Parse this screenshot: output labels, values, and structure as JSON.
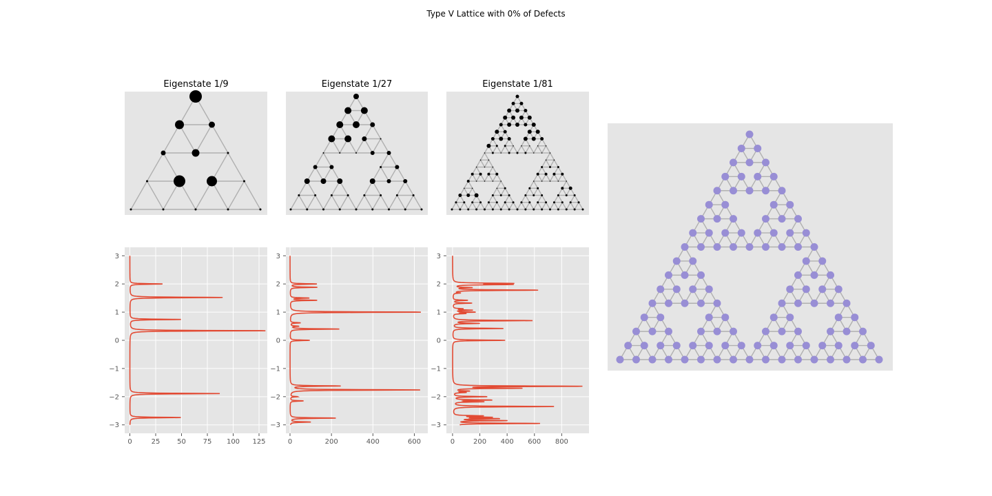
{
  "figure": {
    "title": "Type V Lattice with 0% of Defects"
  },
  "colors": {
    "panel_bg": "#e5e5e5",
    "grid": "#ffffff",
    "edge": "#b0b0b0",
    "eigen_node": "#000000",
    "dos_line": "#e24a33",
    "lattice_node": "#988ed5"
  },
  "chart_data": [
    {
      "type": "network",
      "title": "Eigenstate 1/9",
      "lattice_level": 2,
      "node_sizes": [
        18,
        13,
        9,
        7,
        11,
        3,
        3,
        17,
        15
      ]
    },
    {
      "type": "network",
      "title": "Eigenstate 1/27",
      "lattice_level": 3,
      "node_sizes": [
        8,
        10,
        10,
        10,
        10,
        7,
        10,
        10,
        7,
        2,
        2,
        2,
        2,
        6,
        6,
        6,
        6,
        3,
        6,
        8,
        8,
        8,
        8,
        6,
        6,
        3,
        3
      ]
    },
    {
      "type": "network",
      "title": "Eigenstate 1/81",
      "lattice_level": 4,
      "node_sizes": [
        5,
        5,
        5,
        6,
        6,
        5,
        6,
        6,
        6,
        6,
        5,
        6,
        6,
        5,
        6,
        6,
        5,
        6,
        6,
        5,
        6,
        5,
        6,
        6,
        5,
        6,
        3,
        3,
        1,
        1,
        1,
        1,
        1,
        1,
        3,
        1,
        3,
        3,
        3,
        1,
        1,
        1,
        1,
        1,
        1,
        1,
        1,
        1,
        1,
        3,
        3,
        3,
        4,
        4,
        4,
        4,
        4,
        4,
        4,
        4,
        4,
        1,
        1,
        1,
        1,
        1,
        1,
        1,
        1,
        1,
        1,
        1,
        1,
        3,
        3,
        3,
        4,
        5,
        5,
        5,
        6
      ]
    },
    {
      "type": "line",
      "x_ticks": [
        0,
        25,
        50,
        75,
        100,
        125
      ],
      "xlim": [
        -5,
        133
      ],
      "y_ticks": [
        3,
        2,
        1,
        0,
        -1,
        -2,
        -3
      ],
      "y_tick_labels": [
        "3",
        "2",
        "1",
        "0",
        "−1",
        "−2",
        "−3"
      ],
      "ylim": [
        -3.3,
        3.3
      ],
      "peaks": [
        [
          2.0,
          32
        ],
        [
          1.52,
          91
        ],
        [
          0.74,
          50
        ],
        [
          0.34,
          133
        ],
        [
          -1.89,
          87
        ],
        [
          -2.74,
          50
        ]
      ]
    },
    {
      "type": "line",
      "x_ticks": [
        0,
        200,
        400,
        600
      ],
      "xlim": [
        -20,
        665
      ],
      "y_ticks": [
        3,
        2,
        1,
        0,
        -1,
        -2,
        -3
      ],
      "y_tick_labels": [
        "3",
        "2",
        "1",
        "0",
        "−1",
        "−2",
        "−3"
      ],
      "ylim": [
        -3.3,
        3.3
      ],
      "peaks": [
        [
          2.0,
          130
        ],
        [
          1.88,
          132
        ],
        [
          1.5,
          90
        ],
        [
          1.42,
          130
        ],
        [
          1.0,
          640
        ],
        [
          0.62,
          50
        ],
        [
          0.5,
          40
        ],
        [
          0.4,
          240
        ],
        [
          0.0,
          95
        ],
        [
          -1.62,
          240
        ],
        [
          -1.76,
          635
        ],
        [
          -2.0,
          35
        ],
        [
          -2.15,
          65
        ],
        [
          -2.76,
          220
        ],
        [
          -2.9,
          100
        ]
      ]
    },
    {
      "type": "line",
      "x_ticks": [
        0,
        200,
        400,
        600,
        800
      ],
      "xlim": [
        -45,
        1000
      ],
      "y_ticks": [
        3,
        2,
        1,
        0,
        -1,
        -2,
        -3
      ],
      "y_tick_labels": [
        "3",
        "2",
        "1",
        "0",
        "−1",
        "−2",
        "−3"
      ],
      "ylim": [
        -3.3,
        3.3
      ],
      "peaks": [
        [
          2.02,
          420
        ],
        [
          1.98,
          410
        ],
        [
          1.87,
          130
        ],
        [
          1.78,
          630
        ],
        [
          1.68,
          50
        ],
        [
          1.42,
          110
        ],
        [
          1.32,
          140
        ],
        [
          1.12,
          70
        ],
        [
          1.07,
          140
        ],
        [
          1.0,
          160
        ],
        [
          0.95,
          90
        ],
        [
          0.7,
          590
        ],
        [
          0.6,
          190
        ],
        [
          0.42,
          370
        ],
        [
          0.0,
          385
        ],
        [
          -1.63,
          950
        ],
        [
          -1.7,
          490
        ],
        [
          -1.8,
          110
        ],
        [
          -1.85,
          90
        ],
        [
          -2.0,
          250
        ],
        [
          -2.12,
          280
        ],
        [
          -2.18,
          220
        ],
        [
          -2.35,
          750
        ],
        [
          -2.68,
          210
        ],
        [
          -2.73,
          260
        ],
        [
          -2.78,
          320
        ],
        [
          -2.85,
          380
        ],
        [
          -2.95,
          640
        ],
        [
          -3.02,
          50
        ]
      ]
    },
    {
      "type": "network",
      "lattice_level": 4
    }
  ]
}
